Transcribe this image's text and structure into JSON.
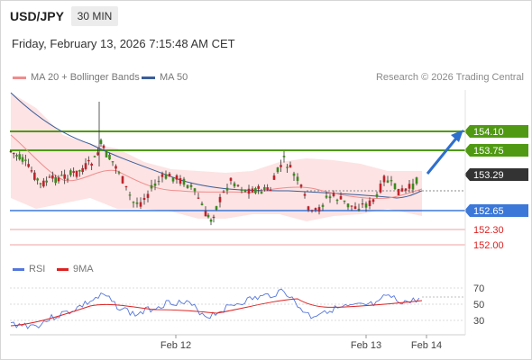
{
  "header": {
    "symbol": "USD/JPY",
    "timeframe": "30 MIN",
    "datetime": "Friday, February 13, 2026 7:15:48 AM CET"
  },
  "legend": {
    "ma20_label": "MA 20 + Bollinger Bands",
    "ma20_color": "#f08c8c",
    "ma50_label": "MA 50",
    "ma50_color": "#3a5e9a",
    "credit": "Research © 2026 Trading Central"
  },
  "colors": {
    "resistance": "#4f9a12",
    "support": "#3b78d8",
    "minor_support": "#f0a0a0",
    "band_fill": "#fde0e0",
    "candle_up": "#3c8a1e",
    "candle_down": "#c0222a",
    "current_price_bg": "#333333",
    "arrow": "#2e6fce",
    "rsi_line": "#5577dd",
    "ma9_line": "#dd2222"
  },
  "levels": [
    {
      "label": "154.10",
      "kind": "resistance"
    },
    {
      "label": "153.75",
      "kind": "resistance"
    },
    {
      "label": "153.29",
      "kind": "current"
    },
    {
      "label": "152.65",
      "kind": "support"
    },
    {
      "label": "152.30",
      "kind": "minor_support"
    },
    {
      "label": "152.00",
      "kind": "minor_support"
    }
  ],
  "indicator_legend": {
    "rsi_label": "RSI",
    "ma9_label": "9MA"
  },
  "rsi_axis": [
    "70",
    "50",
    "30"
  ],
  "x_axis": [
    "Feb 12",
    "Feb 13",
    "Feb 14"
  ]
}
